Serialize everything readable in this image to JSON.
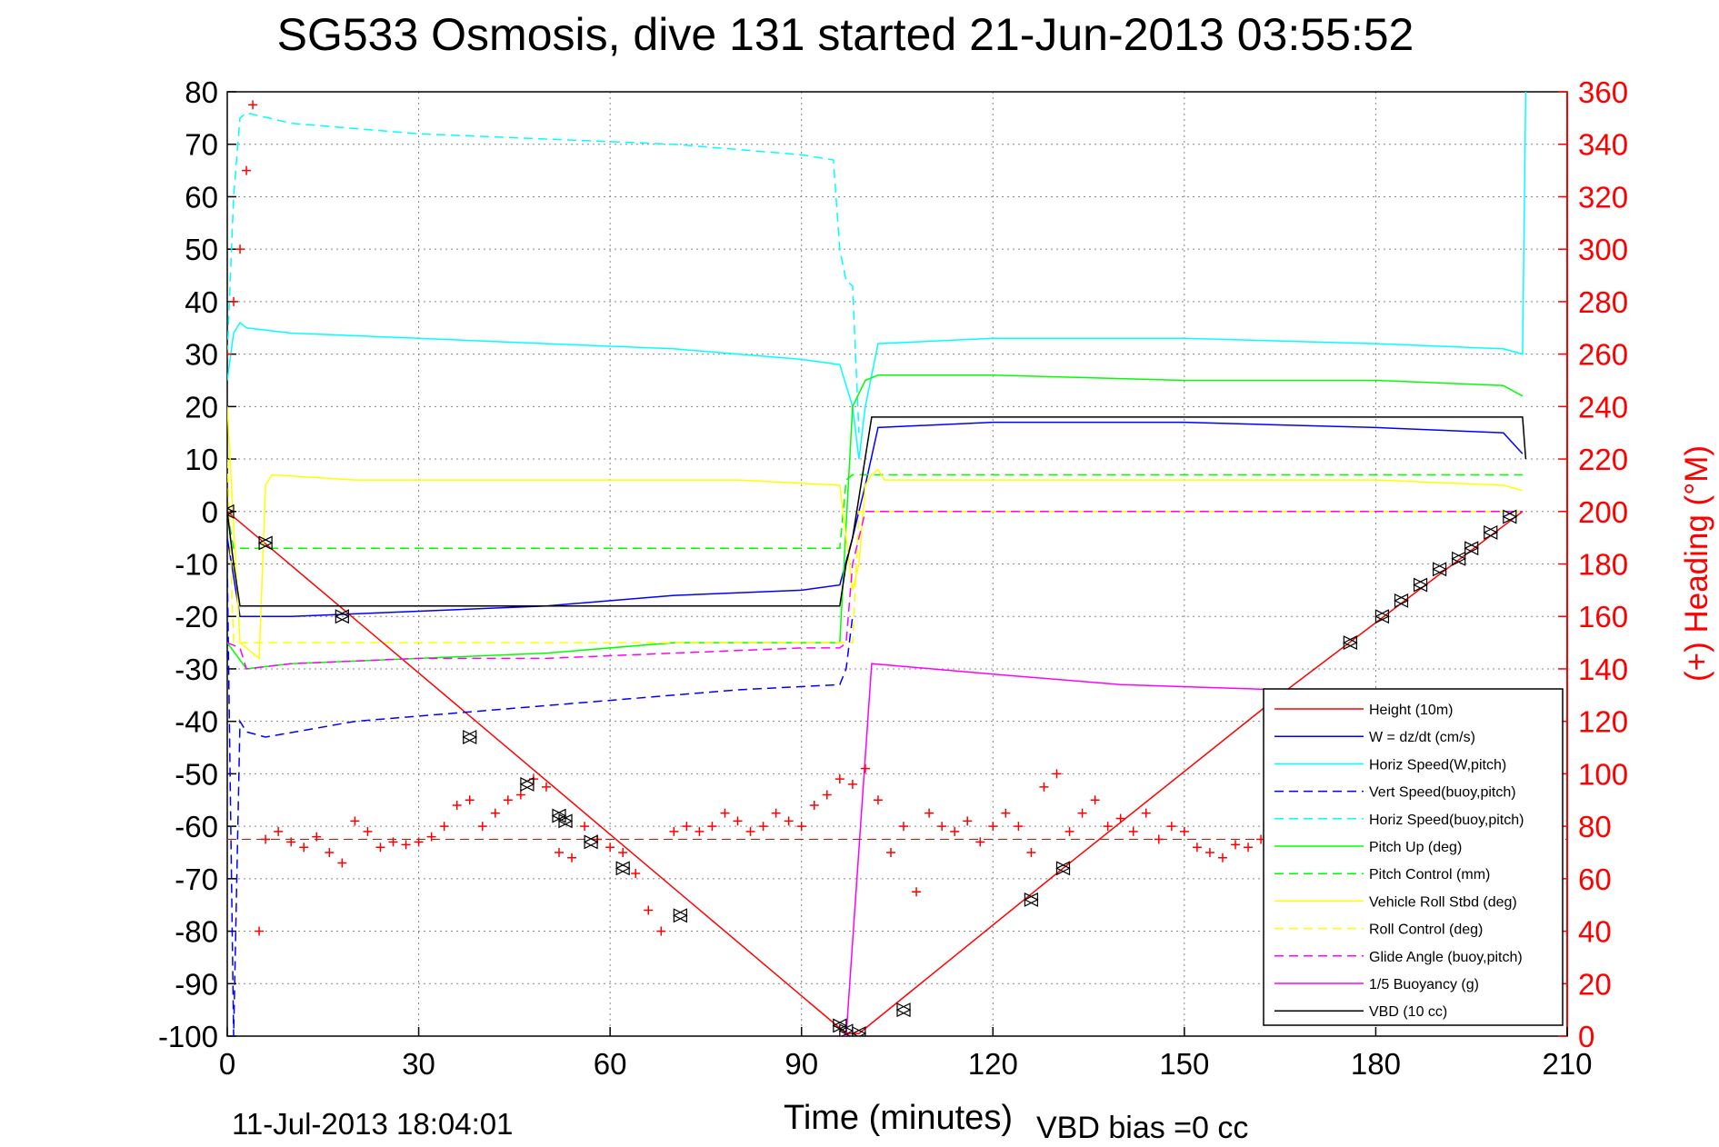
{
  "chart_data": {
    "type": "line",
    "title": "SG533 Osmosis, dive 131 started 21-Jun-2013 03:55:52",
    "xlabel": "Time (minutes)",
    "ylabel_right": "(+) Heading (°M)",
    "footer_left": "11-Jul-2013 18:04:01",
    "footer_right": "VBD bias =0 cc",
    "xlim": [
      0,
      210
    ],
    "ylim_left": [
      -100,
      80
    ],
    "ylim_right": [
      0,
      360
    ],
    "x_ticks": [
      "0",
      "30",
      "60",
      "90",
      "120",
      "150",
      "180",
      "210"
    ],
    "y_ticks_left": [
      "80",
      "70",
      "60",
      "50",
      "40",
      "30",
      "20",
      "10",
      "0",
      "-10",
      "-20",
      "-30",
      "-40",
      "-50",
      "-60",
      "-70",
      "-80",
      "-90",
      "-100"
    ],
    "y_ticks_right": [
      "360",
      "340",
      "320",
      "300",
      "280",
      "260",
      "240",
      "220",
      "200",
      "180",
      "160",
      "140",
      "120",
      "100",
      "80",
      "60",
      "40",
      "20",
      "0"
    ],
    "grid": true,
    "legend_position": "lower-right",
    "series": [
      {
        "name": "Height (10m)",
        "color": "#ff0000",
        "style": "solid",
        "x": [
          0,
          97,
          99,
          131,
          165,
          203
        ],
        "y": [
          0,
          -99.5,
          -99.5,
          -68,
          -35,
          0
        ]
      },
      {
        "name": "W = dz/dt (cm/s)",
        "color": "#0000ff",
        "style": "solid",
        "x": [
          0,
          2,
          10,
          30,
          50,
          70,
          90,
          96,
          98,
          100,
          102,
          120,
          150,
          180,
          200,
          203
        ],
        "y": [
          -5,
          -20,
          -20,
          -19,
          -18,
          -16,
          -15,
          -14,
          -5,
          5,
          16,
          17,
          17,
          16,
          15,
          11
        ]
      },
      {
        "name": "Horiz Speed(W,pitch)",
        "color": "#00ffff",
        "style": "solid",
        "x": [
          0,
          1,
          2,
          3,
          10,
          30,
          50,
          70,
          90,
          96,
          98,
          99,
          100,
          102,
          120,
          150,
          180,
          200,
          203,
          203.5
        ],
        "y": [
          25,
          34,
          36,
          35,
          34,
          33,
          32,
          31,
          29,
          28,
          20,
          10,
          20,
          32,
          33,
          33,
          32,
          31,
          30,
          80
        ]
      },
      {
        "name": "Vert Speed(buoy,pitch)",
        "color": "#0000ff",
        "style": "dashed",
        "x": [
          0,
          1,
          2,
          3,
          6,
          20,
          40,
          60,
          80,
          96,
          97,
          98
        ],
        "y": [
          -10,
          -100,
          -40,
          -42,
          -43,
          -40,
          -38,
          -36,
          -34,
          -33,
          -30,
          -20
        ]
      },
      {
        "name": "Horiz Speed(buoy,pitch)",
        "color": "#00ffff",
        "style": "dashed",
        "x": [
          0,
          1,
          2,
          3,
          10,
          30,
          50,
          70,
          90,
          95,
          96,
          97,
          98,
          99
        ],
        "y": [
          30,
          60,
          75,
          76,
          74,
          72,
          71,
          70,
          68,
          67,
          50,
          44,
          43,
          15
        ]
      },
      {
        "name": "Pitch Up (deg)",
        "color": "#00ff00",
        "style": "solid",
        "x": [
          0,
          3,
          10,
          30,
          50,
          70,
          90,
          96,
          98,
          100,
          102,
          120,
          150,
          180,
          200,
          203
        ],
        "y": [
          -25,
          -30,
          -29,
          -28,
          -27,
          -25,
          -25,
          -25,
          20,
          25,
          26,
          26,
          25,
          25,
          24,
          22
        ]
      },
      {
        "name": "Pitch Control (mm)",
        "color": "#00ff00",
        "style": "dashed",
        "x": [
          0,
          1,
          2,
          96,
          97,
          98,
          203
        ],
        "y": [
          0,
          -7,
          -7,
          -7,
          6,
          7,
          7
        ]
      },
      {
        "name": "Vehicle Roll Stbd (deg)",
        "color": "#ffff00",
        "style": "solid",
        "x": [
          0,
          2,
          5,
          6,
          7,
          20,
          40,
          60,
          80,
          96,
          97,
          98,
          99,
          100,
          101,
          102,
          103,
          120,
          150,
          180,
          200,
          203
        ],
        "y": [
          20,
          -25,
          -28,
          5,
          7,
          6,
          6,
          6,
          6,
          5,
          -5,
          -15,
          -10,
          5,
          7,
          8,
          6,
          6,
          6,
          6,
          5,
          4
        ]
      },
      {
        "name": "Roll Control (deg)",
        "color": "#ffff00",
        "style": "dashed",
        "x": [
          0,
          1,
          2,
          98,
          99,
          203
        ],
        "y": [
          10,
          -25,
          -25,
          -25,
          0,
          0
        ]
      },
      {
        "name": "Glide Angle (buoy,pitch)",
        "color": "#ff00ff",
        "style": "dashed",
        "x": [
          0,
          2,
          3,
          10,
          30,
          50,
          70,
          90,
          96,
          97,
          98,
          100,
          203
        ],
        "y": [
          -25,
          -26,
          -30,
          -29,
          -28,
          -28,
          -27,
          -26,
          -26,
          -25,
          -10,
          0,
          0
        ]
      },
      {
        "name": "1/5 Buoyancy (g)",
        "color": "#ff00ff",
        "style": "solid",
        "x": [
          96,
          97,
          101,
          120,
          140,
          165
        ],
        "y": [
          -100,
          -100,
          -29,
          -31,
          -33,
          -34
        ]
      },
      {
        "name": "VBD (10 cc)",
        "color": "#000000",
        "style": "solid",
        "x": [
          0,
          1,
          2,
          96,
          97,
          98,
          101,
          102,
          203,
          203.5
        ],
        "y": [
          0,
          -10,
          -18,
          -18,
          -10,
          -5,
          18,
          18,
          18,
          10
        ]
      }
    ],
    "heading": {
      "color": "#ff0000",
      "marker": "+",
      "axis": "right",
      "reference_line": 75,
      "t": [
        0,
        1,
        2,
        3,
        4,
        5,
        6,
        8,
        10,
        12,
        14,
        16,
        18,
        20,
        22,
        24,
        26,
        28,
        30,
        32,
        34,
        36,
        38,
        40,
        42,
        44,
        46,
        48,
        50,
        52,
        54,
        56,
        58,
        60,
        62,
        64,
        66,
        68,
        70,
        72,
        74,
        76,
        78,
        80,
        82,
        84,
        86,
        88,
        90,
        92,
        94,
        96,
        98,
        100,
        102,
        104,
        106,
        108,
        110,
        112,
        114,
        116,
        118,
        120,
        122,
        124,
        126,
        128,
        130,
        132,
        134,
        136,
        138,
        140,
        142,
        144,
        146,
        148,
        150,
        152,
        154,
        156,
        158,
        160,
        162
      ],
      "h": [
        260,
        280,
        300,
        330,
        355,
        40,
        75,
        78,
        74,
        72,
        76,
        70,
        66,
        82,
        78,
        72,
        74,
        73,
        74,
        76,
        80,
        88,
        90,
        80,
        85,
        90,
        92,
        98,
        95,
        70,
        68,
        80,
        75,
        72,
        70,
        62,
        48,
        40,
        78,
        80,
        78,
        80,
        85,
        82,
        78,
        80,
        85,
        82,
        80,
        88,
        92,
        98,
        96,
        102,
        90,
        70,
        80,
        55,
        85,
        80,
        78,
        82,
        74,
        80,
        85,
        80,
        70,
        95,
        100,
        78,
        85,
        90,
        80,
        83,
        78,
        85,
        75,
        80,
        78,
        72,
        70,
        68,
        73,
        72,
        75
      ]
    },
    "markers_triangle": {
      "x": [
        0,
        6,
        18,
        38,
        47,
        52,
        53,
        57,
        62,
        71,
        96,
        97,
        99,
        106,
        126,
        131,
        176,
        181,
        184,
        187,
        190,
        193,
        195,
        198,
        201
      ],
      "y": [
        0,
        -6,
        -20,
        -43,
        -52,
        -58,
        -59,
        -63,
        -68,
        -77,
        -98,
        -99,
        -99.5,
        -95,
        -74,
        -68,
        -25,
        -20,
        -17,
        -14,
        -11,
        -9,
        -7,
        -4,
        -1
      ]
    }
  }
}
